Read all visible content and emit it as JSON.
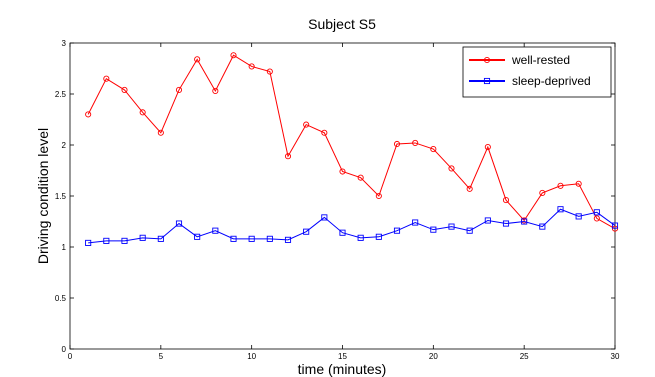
{
  "chart_data": {
    "type": "line",
    "title": "Subject S5",
    "xlabel": "time (minutes)",
    "ylabel": "Driving condition level",
    "xlim": [
      0,
      30
    ],
    "ylim": [
      0,
      3
    ],
    "xticks": [
      0,
      5,
      10,
      15,
      20,
      25,
      30
    ],
    "yticks": [
      0,
      0.5,
      1,
      1.5,
      2,
      2.5,
      3
    ],
    "grid": false,
    "legend_position": "top-right",
    "x": [
      1,
      2,
      3,
      4,
      5,
      6,
      7,
      8,
      9,
      10,
      11,
      12,
      13,
      14,
      15,
      16,
      17,
      18,
      19,
      20,
      21,
      22,
      23,
      24,
      25,
      26,
      27,
      28,
      29,
      30
    ],
    "series": [
      {
        "name": "well-rested",
        "color": "#ff0000",
        "marker": "circle",
        "values": [
          2.3,
          2.65,
          2.54,
          2.32,
          2.12,
          2.54,
          2.84,
          2.53,
          2.88,
          2.77,
          2.72,
          1.89,
          2.2,
          2.12,
          1.74,
          1.68,
          1.5,
          2.01,
          2.02,
          1.96,
          1.77,
          1.57,
          1.98,
          1.46,
          1.26,
          1.53,
          1.6,
          1.62,
          1.28,
          1.18
        ]
      },
      {
        "name": "sleep-deprived",
        "color": "#0000ff",
        "marker": "square",
        "values": [
          1.04,
          1.06,
          1.06,
          1.09,
          1.08,
          1.23,
          1.1,
          1.16,
          1.08,
          1.08,
          1.08,
          1.07,
          1.15,
          1.29,
          1.14,
          1.09,
          1.1,
          1.16,
          1.24,
          1.17,
          1.2,
          1.16,
          1.26,
          1.23,
          1.25,
          1.2,
          1.37,
          1.3,
          1.34,
          1.21
        ]
      }
    ]
  }
}
